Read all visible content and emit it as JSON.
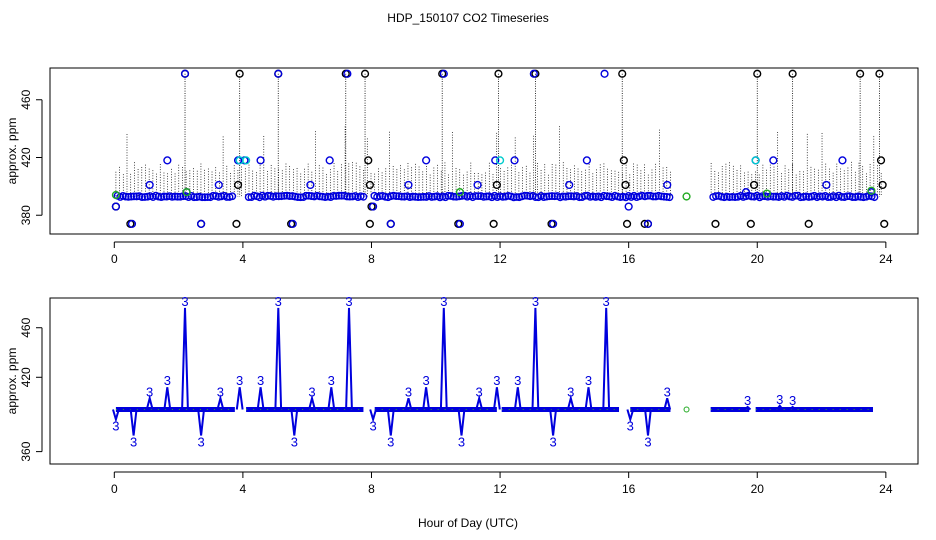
{
  "chart_data": {
    "title": "HDP_150107  CO2 Timeseries",
    "xlabel": "Hour of Day (UTC)",
    "xlim": [
      -2,
      25
    ],
    "xticks": [
      0,
      4,
      8,
      12,
      16,
      20,
      24
    ],
    "panels": [
      {
        "id": "top",
        "type": "scatter",
        "ylabel": "approx. ppm",
        "ylim": [
          367,
          482
        ],
        "yticks": [
          380,
          420,
          460
        ],
        "baseline": 393,
        "series": [
          {
            "name": "black-rings",
            "color": "#000000",
            "points": [
              [
                0.05,
                386
              ],
              [
                0.5,
                374
              ],
              [
                2.2,
                478
              ],
              [
                2.7,
                374
              ],
              [
                3.8,
                374
              ],
              [
                3.85,
                401
              ],
              [
                3.9,
                478
              ],
              [
                5.1,
                478
              ],
              [
                5.5,
                374
              ],
              [
                7.2,
                478
              ],
              [
                7.8,
                478
              ],
              [
                7.9,
                418
              ],
              [
                7.95,
                401
              ],
              [
                7.95,
                374
              ],
              [
                8.0,
                386
              ],
              [
                8.6,
                374
              ],
              [
                10.2,
                478
              ],
              [
                10.7,
                374
              ],
              [
                11.8,
                374
              ],
              [
                11.9,
                401
              ],
              [
                11.95,
                478
              ],
              [
                13.1,
                478
              ],
              [
                13.6,
                374
              ],
              [
                15.8,
                478
              ],
              [
                15.85,
                418
              ],
              [
                15.9,
                401
              ],
              [
                15.95,
                374
              ],
              [
                16.5,
                374
              ],
              [
                16.6,
                374
              ],
              [
                18.7,
                374
              ],
              [
                19.8,
                374
              ],
              [
                19.9,
                401
              ],
              [
                20.0,
                478
              ],
              [
                21.1,
                478
              ],
              [
                21.6,
                374
              ],
              [
                23.2,
                478
              ],
              [
                23.8,
                478
              ],
              [
                23.85,
                418
              ],
              [
                23.9,
                401
              ],
              [
                23.95,
                374
              ]
            ]
          },
          {
            "name": "blue-rings",
            "color": "#0000dd",
            "points": [
              [
                0.05,
                386
              ],
              [
                0.55,
                374
              ],
              [
                1.1,
                401
              ],
              [
                1.65,
                418
              ],
              [
                2.2,
                478
              ],
              [
                2.25,
                396
              ],
              [
                2.7,
                374
              ],
              [
                3.25,
                401
              ],
              [
                3.85,
                418
              ],
              [
                4.05,
                418
              ],
              [
                4.55,
                418
              ],
              [
                5.1,
                478
              ],
              [
                5.55,
                374
              ],
              [
                6.1,
                401
              ],
              [
                6.7,
                418
              ],
              [
                7.25,
                478
              ],
              [
                8.05,
                386
              ],
              [
                8.6,
                374
              ],
              [
                9.15,
                401
              ],
              [
                9.7,
                418
              ],
              [
                10.25,
                478
              ],
              [
                10.75,
                374
              ],
              [
                11.3,
                401
              ],
              [
                11.85,
                418
              ],
              [
                12.45,
                418
              ],
              [
                13.05,
                478
              ],
              [
                13.65,
                374
              ],
              [
                14.15,
                401
              ],
              [
                14.7,
                418
              ],
              [
                15.25,
                478
              ],
              [
                16.0,
                386
              ],
              [
                16.6,
                374
              ],
              [
                17.2,
                401
              ],
              [
                19.65,
                396
              ],
              [
                19.95,
                418
              ],
              [
                20.5,
                418
              ],
              [
                22.15,
                401
              ],
              [
                22.65,
                418
              ],
              [
                23.55,
                396
              ]
            ]
          },
          {
            "name": "cyan-rings",
            "color": "#00cccc",
            "points": [
              [
                3.9,
                418
              ],
              [
                4.1,
                418
              ],
              [
                12.0,
                418
              ],
              [
                19.95,
                418
              ]
            ]
          },
          {
            "name": "green-rings",
            "color": "#22aa22",
            "points": [
              [
                0.05,
                394
              ],
              [
                2.25,
                396
              ],
              [
                10.75,
                396
              ],
              [
                17.8,
                393
              ],
              [
                20.3,
                395
              ],
              [
                23.55,
                397
              ]
            ]
          }
        ]
      },
      {
        "id": "bottom",
        "type": "line",
        "ylabel": "approx. ppm",
        "ylim": [
          350,
          484
        ],
        "yticks": [
          360,
          420,
          460
        ],
        "baseline": 394,
        "marker_digit": "3",
        "spikes": [
          [
            0.05,
            386,
            "down"
          ],
          [
            0.6,
            373,
            "down"
          ],
          [
            1.1,
            403,
            "up"
          ],
          [
            1.65,
            412,
            "up"
          ],
          [
            2.2,
            476,
            "up"
          ],
          [
            2.7,
            373,
            "down"
          ],
          [
            3.3,
            403,
            "up"
          ],
          [
            3.9,
            412,
            "up"
          ],
          [
            4.55,
            412,
            "up"
          ],
          [
            5.1,
            476,
            "up"
          ],
          [
            5.6,
            373,
            "down"
          ],
          [
            6.15,
            403,
            "up"
          ],
          [
            6.75,
            412,
            "up"
          ],
          [
            7.3,
            476,
            "up"
          ],
          [
            8.05,
            386,
            "down"
          ],
          [
            8.6,
            373,
            "down"
          ],
          [
            9.15,
            403,
            "up"
          ],
          [
            9.7,
            412,
            "up"
          ],
          [
            10.25,
            476,
            "up"
          ],
          [
            10.8,
            373,
            "down"
          ],
          [
            11.35,
            403,
            "up"
          ],
          [
            11.9,
            412,
            "up"
          ],
          [
            12.55,
            412,
            "up"
          ],
          [
            13.1,
            476,
            "up"
          ],
          [
            13.65,
            373,
            "down"
          ],
          [
            14.2,
            403,
            "up"
          ],
          [
            14.75,
            412,
            "up"
          ],
          [
            15.3,
            476,
            "up"
          ],
          [
            16.05,
            386,
            "down"
          ],
          [
            16.6,
            373,
            "down"
          ],
          [
            17.2,
            403,
            "up"
          ],
          [
            19.7,
            396,
            "up"
          ],
          [
            20.7,
            397,
            "up"
          ],
          [
            21.1,
            396,
            "up"
          ]
        ],
        "gaps": [
          [
            3.75,
            4.05
          ],
          [
            7.75,
            8.05
          ],
          [
            11.95,
            12.05
          ],
          [
            15.75,
            16.05
          ],
          [
            17.35,
            18.55
          ],
          [
            19.8,
            19.95
          ]
        ]
      }
    ]
  }
}
